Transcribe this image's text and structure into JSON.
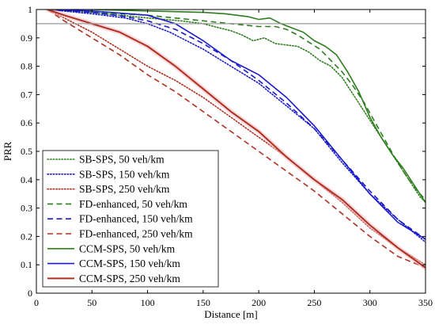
{
  "chart_data": {
    "type": "line",
    "title": "",
    "xlabel": "Distance [m]",
    "ylabel": "PRR",
    "xlim": [
      0,
      350
    ],
    "ylim": [
      0,
      1
    ],
    "xticks": [
      0,
      50,
      100,
      150,
      200,
      250,
      300,
      350
    ],
    "yticks": [
      0,
      0.1,
      0.2,
      0.3,
      0.4,
      0.5,
      0.6,
      0.7,
      0.8,
      0.9,
      1
    ],
    "grid": false,
    "legend_position": "bottom-left",
    "reference_line": {
      "y": 0.95,
      "color": "#9a9a9a"
    },
    "colors": {
      "green": "#2e7d1e",
      "blue": "#1a1acc",
      "red": "#b03020",
      "background": "#ffffff",
      "axis": "#000000"
    },
    "series": [
      {
        "name": "SB-SPS, 50 veh/km",
        "color": "#2e7d1e",
        "style": "dotted",
        "width": 1.6,
        "x": [
          10,
          50,
          100,
          130,
          150,
          165,
          175,
          185,
          195,
          205,
          215,
          225,
          235,
          245,
          255,
          265,
          275,
          285,
          295,
          305,
          315,
          325,
          335,
          345,
          350
        ],
        "y": [
          1.0,
          0.99,
          0.97,
          0.96,
          0.95,
          0.935,
          0.925,
          0.91,
          0.89,
          0.9,
          0.88,
          0.875,
          0.87,
          0.85,
          0.82,
          0.8,
          0.76,
          0.7,
          0.64,
          0.58,
          0.52,
          0.46,
          0.4,
          0.34,
          0.32
        ]
      },
      {
        "name": "SB-SPS, 150 veh/km",
        "color": "#1a1acc",
        "style": "dotted",
        "width": 1.6,
        "x": [
          10,
          50,
          80,
          100,
          120,
          150,
          175,
          200,
          225,
          250,
          275,
          300,
          325,
          350
        ],
        "y": [
          1.0,
          0.985,
          0.97,
          0.95,
          0.92,
          0.86,
          0.8,
          0.74,
          0.66,
          0.58,
          0.46,
          0.35,
          0.26,
          0.18
        ]
      },
      {
        "name": "SB-SPS, 250 veh/km",
        "color": "#b03020",
        "style": "dotted",
        "width": 1.6,
        "x": [
          10,
          25,
          50,
          75,
          100,
          125,
          150,
          175,
          200,
          225,
          250,
          275,
          300,
          325,
          350
        ],
        "y": [
          1.0,
          0.97,
          0.92,
          0.86,
          0.8,
          0.75,
          0.69,
          0.62,
          0.55,
          0.48,
          0.4,
          0.32,
          0.23,
          0.16,
          0.1
        ]
      },
      {
        "name": "FD-enhanced, 50 veh/km",
        "color": "#2e7d1e",
        "style": "dashed",
        "width": 1.6,
        "x": [
          10,
          50,
          100,
          150,
          175,
          200,
          215,
          225,
          235,
          245,
          255,
          265,
          275,
          285,
          295,
          305,
          315,
          325,
          335,
          345,
          350
        ],
        "y": [
          1.0,
          0.99,
          0.98,
          0.96,
          0.95,
          0.94,
          0.94,
          0.93,
          0.91,
          0.885,
          0.86,
          0.82,
          0.78,
          0.73,
          0.67,
          0.6,
          0.53,
          0.46,
          0.4,
          0.35,
          0.33
        ]
      },
      {
        "name": "FD-enhanced, 150 veh/km",
        "color": "#1a1acc",
        "style": "dashed",
        "width": 1.6,
        "x": [
          10,
          50,
          80,
          100,
          125,
          150,
          175,
          200,
          225,
          250,
          275,
          300,
          325,
          350
        ],
        "y": [
          1.0,
          0.99,
          0.975,
          0.96,
          0.93,
          0.88,
          0.82,
          0.75,
          0.67,
          0.58,
          0.47,
          0.36,
          0.26,
          0.19
        ]
      },
      {
        "name": "FD-enhanced, 250 veh/km",
        "color": "#b03020",
        "style": "dashed",
        "width": 1.6,
        "x": [
          10,
          25,
          50,
          75,
          100,
          125,
          150,
          175,
          200,
          225,
          250,
          275,
          300,
          325,
          350
        ],
        "y": [
          1.0,
          0.96,
          0.9,
          0.84,
          0.77,
          0.71,
          0.64,
          0.57,
          0.5,
          0.43,
          0.36,
          0.28,
          0.2,
          0.13,
          0.09
        ]
      },
      {
        "name": "CCM-SPS, 50 veh/km",
        "color": "#2e7d1e",
        "style": "solid",
        "width": 1.6,
        "x": [
          10,
          50,
          100,
          150,
          170,
          180,
          190,
          200,
          210,
          220,
          230,
          240,
          250,
          260,
          270,
          280,
          290,
          300,
          310,
          320,
          330,
          340,
          350
        ],
        "y": [
          1.0,
          1.0,
          0.995,
          0.99,
          0.985,
          0.98,
          0.975,
          0.965,
          0.97,
          0.95,
          0.935,
          0.92,
          0.89,
          0.87,
          0.84,
          0.78,
          0.71,
          0.62,
          0.55,
          0.49,
          0.44,
          0.38,
          0.32
        ]
      },
      {
        "name": "CCM-SPS, 150 veh/km",
        "color": "#1a1acc",
        "style": "solid",
        "width": 1.6,
        "x": [
          10,
          50,
          100,
          125,
          150,
          175,
          200,
          225,
          250,
          275,
          300,
          325,
          350
        ],
        "y": [
          1.0,
          0.995,
          0.98,
          0.95,
          0.89,
          0.82,
          0.77,
          0.69,
          0.59,
          0.47,
          0.35,
          0.25,
          0.19
        ]
      },
      {
        "name": "CCM-SPS, 250 veh/km",
        "color": "#b03020",
        "style": "solid",
        "width": 2.0,
        "halo": "#f0b8c0",
        "x": [
          10,
          25,
          50,
          75,
          100,
          125,
          150,
          175,
          200,
          225,
          250,
          275,
          300,
          325,
          350
        ],
        "y": [
          1.0,
          0.98,
          0.95,
          0.92,
          0.87,
          0.8,
          0.72,
          0.64,
          0.57,
          0.48,
          0.4,
          0.33,
          0.24,
          0.16,
          0.09
        ]
      }
    ]
  }
}
